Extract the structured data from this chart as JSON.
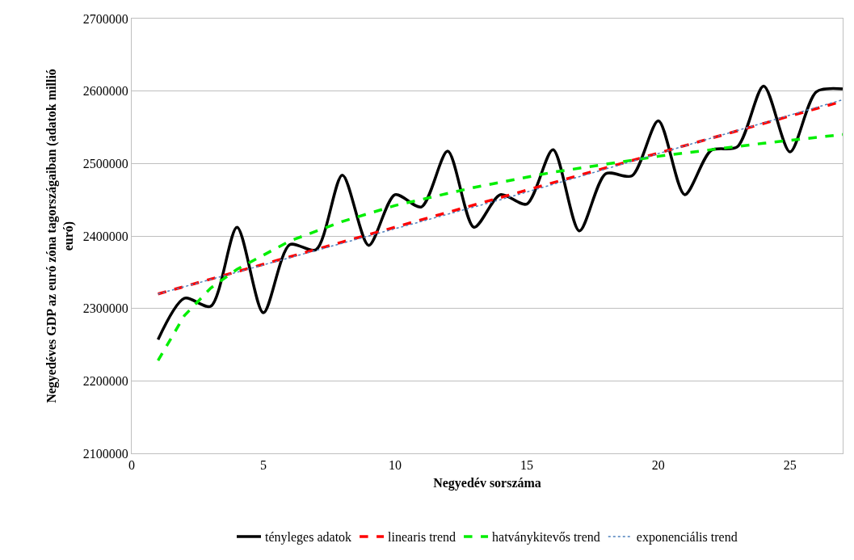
{
  "chart_data": {
    "type": "line",
    "xlabel": "Negyedév sorszáma",
    "ylabel": "Negyedéves GDP az euró zóna tagországaiban (adatok millió\neuró)",
    "xlim": [
      0,
      27
    ],
    "xticks": [
      0,
      5,
      10,
      15,
      20,
      25
    ],
    "ylim": [
      2100000,
      2700000
    ],
    "yticks": [
      2100000,
      2200000,
      2300000,
      2400000,
      2500000,
      2600000,
      2700000
    ],
    "grid": "y",
    "legend": "bottom",
    "marker": "none",
    "series": [
      {
        "name": "tényleges adatok",
        "color": "#000000",
        "line_style": "solid",
        "x": [
          1,
          2,
          3,
          4,
          5,
          6,
          7,
          8,
          9,
          10,
          11,
          12,
          13,
          14,
          15,
          16,
          17,
          18,
          19,
          20,
          21,
          22,
          23,
          24,
          25,
          26,
          27
        ],
        "values": [
          2257000,
          2314000,
          2303000,
          2412000,
          2294000,
          2388000,
          2381000,
          2484000,
          2387000,
          2457000,
          2440000,
          2517000,
          2412000,
          2457000,
          2444000,
          2519000,
          2407000,
          2486000,
          2483000,
          2559000,
          2457000,
          2518000,
          2523000,
          2607000,
          2516000,
          2599000,
          2603000
        ]
      },
      {
        "name": "linearis trend",
        "color": "#ff0000",
        "line_style": "dashed",
        "x": [
          1,
          27
        ],
        "values": [
          2320000,
          2586000
        ]
      },
      {
        "name": "hatványkitevős trend",
        "color": "#00ee00",
        "line_style": "dashed",
        "x": [
          1,
          2,
          3,
          4,
          6,
          8,
          10,
          13,
          16,
          20,
          24,
          27
        ],
        "values": [
          2228000,
          2290000,
          2328000,
          2354000,
          2393000,
          2420000,
          2442000,
          2467000,
          2488000,
          2510000,
          2528000,
          2540000
        ]
      },
      {
        "name": "exponenciális trend",
        "color": "#4f81bd",
        "line_style": "dotted",
        "x": [
          1,
          14,
          27
        ],
        "values": [
          2320000,
          2450000,
          2588000
        ]
      }
    ]
  }
}
